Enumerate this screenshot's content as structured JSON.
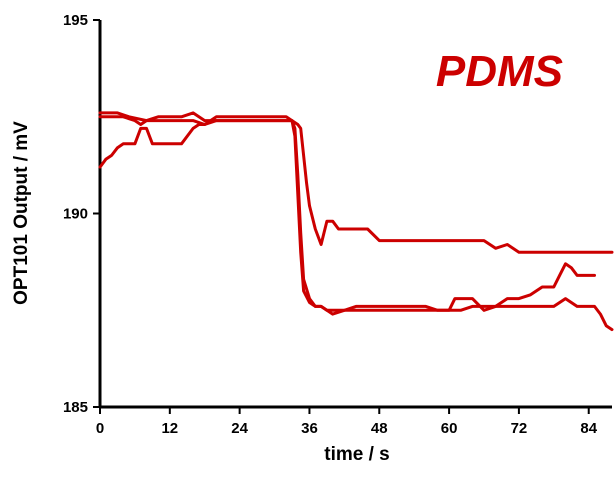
{
  "chart_data": {
    "type": "line",
    "title": "",
    "xlabel": "time / s",
    "ylabel": "OPT101 Output / mV",
    "xlim": [
      0,
      88
    ],
    "ylim": [
      185,
      195
    ],
    "xticks": [
      0,
      12,
      24,
      36,
      48,
      60,
      72,
      84
    ],
    "yticks": [
      185,
      190,
      195
    ],
    "grid": false,
    "line_color": "#cc0000",
    "annotation": {
      "text": "PDMS",
      "color": "#cc0000",
      "placement": "top-right"
    },
    "series": [
      {
        "x": [
          0,
          1,
          3,
          5,
          8,
          10,
          12,
          14,
          16,
          18,
          20,
          24,
          28,
          30,
          32,
          33,
          33.5,
          34,
          34.5,
          35,
          36,
          37,
          38,
          39,
          40,
          42,
          44,
          46,
          48,
          50,
          52,
          54,
          56,
          58,
          60,
          62,
          64,
          66,
          68,
          70,
          72,
          74,
          76,
          78,
          80,
          82,
          84,
          85,
          86,
          87,
          88
        ],
        "y": [
          192.6,
          192.6,
          192.6,
          192.5,
          192.4,
          192.5,
          192.5,
          192.5,
          192.6,
          192.4,
          192.4,
          192.4,
          192.4,
          192.4,
          192.4,
          192.4,
          192.2,
          191.0,
          189.5,
          188.3,
          187.8,
          187.6,
          187.6,
          187.5,
          187.5,
          187.5,
          187.5,
          187.5,
          187.5,
          187.5,
          187.5,
          187.5,
          187.5,
          187.5,
          187.5,
          187.5,
          187.6,
          187.6,
          187.6,
          187.6,
          187.6,
          187.6,
          187.6,
          187.6,
          187.8,
          187.6,
          187.6,
          187.6,
          187.4,
          187.1,
          187.0
        ]
      },
      {
        "x": [
          0,
          1,
          2,
          3,
          4,
          6,
          7,
          8,
          9,
          10,
          12,
          14,
          16,
          17,
          18,
          20,
          24,
          28,
          30,
          32,
          33,
          34,
          34.5,
          35,
          35.5,
          36,
          37,
          38,
          39,
          40,
          41,
          42,
          44,
          46,
          48,
          50,
          52,
          54,
          56,
          58,
          60,
          62,
          64,
          66,
          68,
          70,
          72,
          74,
          76,
          78,
          80,
          82,
          84,
          86,
          88
        ],
        "y": [
          191.2,
          191.4,
          191.5,
          191.7,
          191.8,
          191.8,
          192.2,
          192.2,
          191.8,
          191.8,
          191.8,
          191.8,
          192.2,
          192.3,
          192.3,
          192.4,
          192.4,
          192.4,
          192.4,
          192.4,
          192.4,
          192.3,
          192.2,
          191.5,
          190.8,
          190.2,
          189.6,
          189.2,
          189.8,
          189.8,
          189.6,
          189.6,
          189.6,
          189.6,
          189.3,
          189.3,
          189.3,
          189.3,
          189.3,
          189.3,
          189.3,
          189.3,
          189.3,
          189.3,
          189.1,
          189.2,
          189.0,
          189.0,
          189.0,
          189.0,
          189.0,
          189.0,
          189.0,
          189.0,
          189.0
        ]
      },
      {
        "x": [
          0,
          2,
          4,
          6,
          7,
          8,
          10,
          12,
          14,
          16,
          18,
          20,
          24,
          28,
          30,
          32,
          33,
          33.5,
          34,
          34.5,
          35,
          36,
          37,
          38,
          40,
          42,
          44,
          46,
          48,
          50,
          52,
          54,
          56,
          58,
          60,
          61,
          62,
          64,
          66,
          68,
          70,
          72,
          74,
          76,
          78,
          79,
          80,
          81,
          82,
          85
        ],
        "y": [
          192.5,
          192.5,
          192.5,
          192.4,
          192.3,
          192.4,
          192.4,
          192.4,
          192.4,
          192.4,
          192.3,
          192.5,
          192.5,
          192.5,
          192.5,
          192.5,
          192.4,
          192.0,
          190.5,
          189.0,
          188.0,
          187.7,
          187.6,
          187.6,
          187.4,
          187.5,
          187.6,
          187.6,
          187.6,
          187.6,
          187.6,
          187.6,
          187.6,
          187.5,
          187.5,
          187.8,
          187.8,
          187.8,
          187.5,
          187.6,
          187.8,
          187.8,
          187.9,
          188.1,
          188.1,
          188.4,
          188.7,
          188.6,
          188.4,
          188.4
        ]
      }
    ]
  }
}
